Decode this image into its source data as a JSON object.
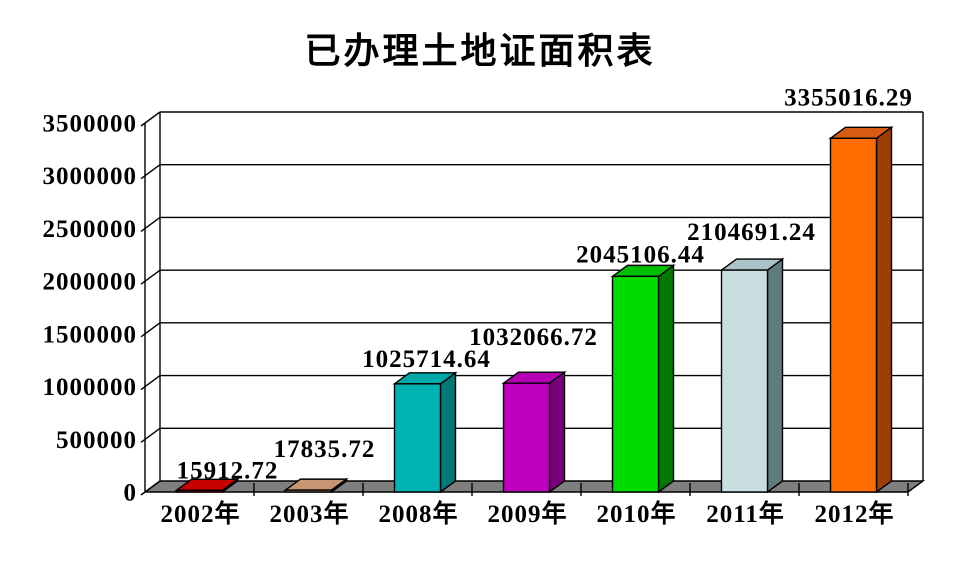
{
  "title": "已办理土地证面积表",
  "chart_data": {
    "type": "bar",
    "style": "3d-column",
    "title": "已办理土地证面积表",
    "categories": [
      "2002年",
      "2003年",
      "2008年",
      "2009年",
      "2010年",
      "2011年",
      "2012年"
    ],
    "values": [
      15912.72,
      17835.72,
      1025714.64,
      1032066.72,
      2045106.44,
      2104691.24,
      3355016.29
    ],
    "data_labels": [
      "15912.72",
      "17835.72",
      "1025714.64",
      "1032066.72",
      "2045106.44",
      "2104691.24",
      "3355016.29"
    ],
    "xlabel": "",
    "ylabel": "",
    "ylim": [
      0,
      3500000
    ],
    "ytick_interval": 500000,
    "ytick_labels": [
      "0",
      "500000",
      "1000000",
      "1500000",
      "2000000",
      "2500000",
      "3000000",
      "3500000"
    ],
    "grid": "horizontal-back-wall",
    "legend": "none",
    "bar_colors": [
      {
        "front": "#C80000",
        "top": "#C80000",
        "side": "#7A0000"
      },
      {
        "front": "#C69672",
        "top": "#C69672",
        "side": "#86603F"
      },
      {
        "front": "#00B2B2",
        "top": "#00A8A8",
        "side": "#007878"
      },
      {
        "front": "#BE00BE",
        "top": "#B200B2",
        "side": "#780078"
      },
      {
        "front": "#00DC00",
        "top": "#00BE00",
        "side": "#007800"
      },
      {
        "front": "#C9DEDE",
        "top": "#AAC4C9",
        "side": "#5F7B7B"
      },
      {
        "front": "#FF6C00",
        "top": "#D65C12",
        "side": "#9E3D05"
      }
    ],
    "floor_color": "#7F7F7F",
    "wall_color": "#FFFFFF",
    "axis_color": "#000000",
    "background_color": "#FFFFFF",
    "text_color": "#000000"
  }
}
